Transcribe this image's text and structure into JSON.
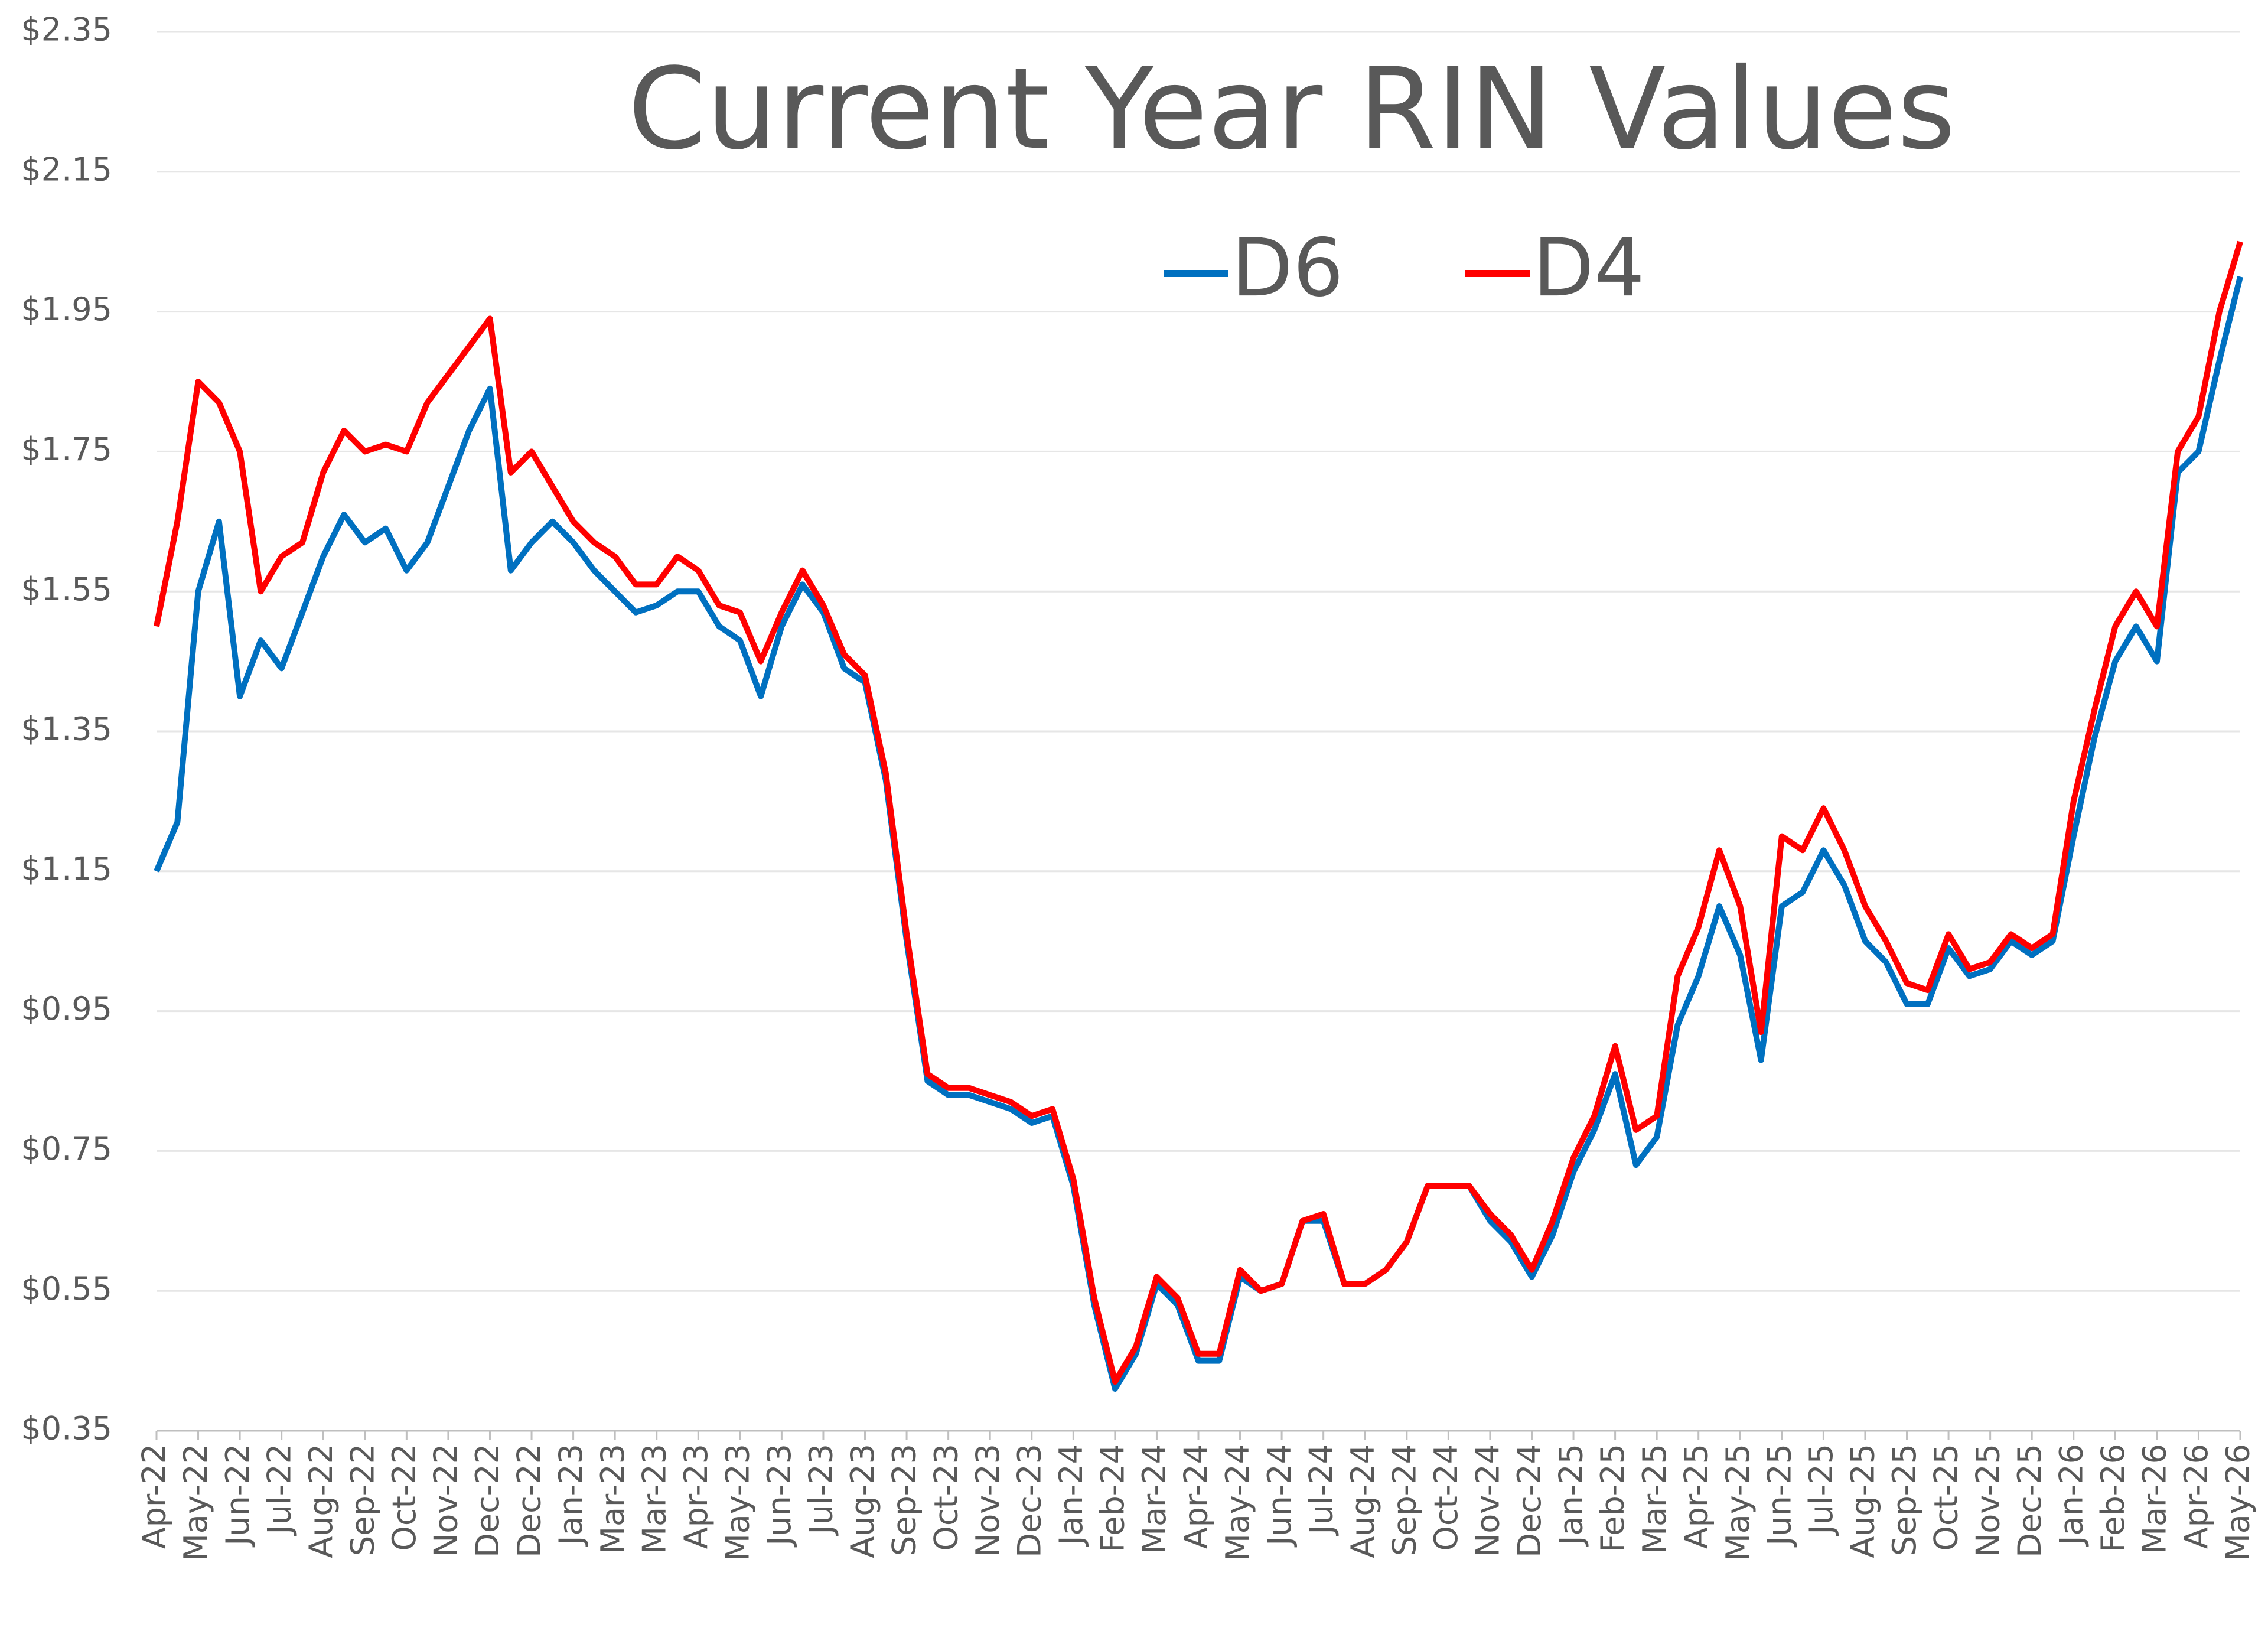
{
  "chart_data": {
    "type": "line",
    "title": "Current Year RIN Values",
    "categories": [
      "Apr-22",
      null,
      "May-22",
      null,
      "Jun-22",
      null,
      "Jul-22",
      null,
      "Aug-22",
      null,
      "Sep-22",
      null,
      "Oct-22",
      null,
      "Nov-22",
      null,
      "Dec-22",
      null,
      "Dec-22",
      null,
      "Jan-23",
      null,
      "Mar-23",
      null,
      "Mar-23",
      null,
      "Apr-23",
      null,
      "May-23",
      null,
      "Jun-23",
      null,
      "Jul-23",
      null,
      "Aug-23",
      null,
      "Sep-23",
      null,
      "Oct-23",
      null,
      "Nov-23",
      null,
      "Dec-23",
      null,
      "Jan-24",
      null,
      "Feb-24",
      null,
      "Mar-24",
      null,
      "Apr-24",
      null,
      "May-24",
      null,
      "Jun-24",
      null,
      "Jul-24",
      null,
      "Aug-24",
      null,
      "Sep-24",
      null,
      "Oct-24",
      null,
      "Nov-24",
      null,
      "Dec-24",
      null,
      "Jan-25",
      null,
      "Feb-25",
      null,
      "Mar-25",
      null,
      "Apr-25",
      null,
      "May-25",
      null,
      "Jun-25",
      null,
      "Jul-25",
      null,
      "Aug-25",
      null,
      "Sep-25",
      null,
      "Oct-25",
      null,
      "Nov-25",
      null,
      "Dec-25",
      null,
      "Jan-26",
      null,
      "Feb-26",
      null,
      "Mar-26",
      null,
      "Apr-26",
      null,
      "May-26"
    ],
    "series": [
      {
        "name": "D6",
        "color": "#0070c0",
        "values": [
          1.15,
          1.22,
          1.55,
          1.65,
          1.4,
          1.48,
          1.44,
          1.52,
          1.6,
          1.66,
          1.62,
          1.64,
          1.58,
          1.62,
          1.7,
          1.78,
          1.84,
          1.58,
          1.62,
          1.65,
          1.62,
          1.58,
          1.55,
          1.52,
          1.53,
          1.55,
          1.55,
          1.5,
          1.48,
          1.4,
          1.5,
          1.56,
          1.52,
          1.44,
          1.42,
          1.28,
          1.05,
          0.85,
          0.83,
          0.83,
          0.82,
          0.81,
          0.79,
          0.8,
          0.7,
          0.53,
          0.41,
          0.46,
          0.56,
          0.53,
          0.45,
          0.45,
          0.57,
          0.55,
          0.56,
          0.65,
          0.65,
          0.56,
          0.56,
          0.58,
          0.62,
          0.7,
          0.7,
          0.7,
          0.65,
          0.62,
          0.57,
          0.63,
          0.72,
          0.78,
          0.86,
          0.73,
          0.77,
          0.93,
          1.0,
          1.1,
          1.03,
          0.88,
          1.1,
          1.12,
          1.18,
          1.13,
          1.05,
          1.02,
          0.96,
          0.96,
          1.04,
          1.0,
          1.01,
          1.05,
          1.03,
          1.05,
          1.2,
          1.34,
          1.45,
          1.5,
          1.45,
          1.72,
          1.75,
          1.88,
          2.0
        ]
      },
      {
        "name": "D4",
        "color": "#ff0000",
        "values": [
          1.5,
          1.65,
          1.85,
          1.82,
          1.75,
          1.55,
          1.6,
          1.62,
          1.72,
          1.78,
          1.75,
          1.76,
          1.75,
          1.82,
          1.86,
          1.9,
          1.94,
          1.72,
          1.75,
          1.7,
          1.65,
          1.62,
          1.6,
          1.56,
          1.56,
          1.6,
          1.58,
          1.53,
          1.52,
          1.45,
          1.52,
          1.58,
          1.53,
          1.46,
          1.43,
          1.29,
          1.06,
          0.86,
          0.84,
          0.84,
          0.83,
          0.82,
          0.8,
          0.81,
          0.71,
          0.54,
          0.42,
          0.47,
          0.57,
          0.54,
          0.46,
          0.46,
          0.58,
          0.55,
          0.56,
          0.65,
          0.66,
          0.56,
          0.56,
          0.58,
          0.62,
          0.7,
          0.7,
          0.7,
          0.66,
          0.63,
          0.58,
          0.65,
          0.74,
          0.8,
          0.9,
          0.78,
          0.8,
          1.0,
          1.07,
          1.18,
          1.1,
          0.92,
          1.2,
          1.18,
          1.24,
          1.18,
          1.1,
          1.05,
          0.99,
          0.98,
          1.06,
          1.01,
          1.02,
          1.06,
          1.04,
          1.06,
          1.25,
          1.38,
          1.5,
          1.55,
          1.5,
          1.75,
          1.8,
          1.95,
          2.05
        ]
      }
    ],
    "ylim": [
      0.35,
      2.35
    ],
    "yticks": [
      {
        "value": 0.35,
        "label": "$0.35"
      },
      {
        "value": 0.55,
        "label": "$0.55"
      },
      {
        "value": 0.75,
        "label": "$0.75"
      },
      {
        "value": 0.95,
        "label": "$0.95"
      },
      {
        "value": 1.15,
        "label": "$1.15"
      },
      {
        "value": 1.35,
        "label": "$1.35"
      },
      {
        "value": 1.55,
        "label": "$1.55"
      },
      {
        "value": 1.75,
        "label": "$1.75"
      },
      {
        "value": 1.95,
        "label": "$1.95"
      },
      {
        "value": 2.15,
        "label": "$2.15"
      },
      {
        "value": 2.35,
        "label": "$2.35"
      }
    ],
    "grid": true,
    "legend": "top"
  }
}
